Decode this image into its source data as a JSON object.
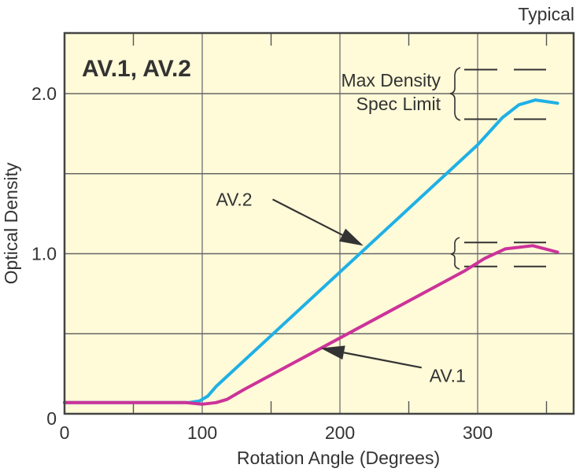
{
  "chart_data": {
    "type": "line",
    "title": "AV.1, AV.2",
    "corner_label": "Typical",
    "xlabel": "Rotation Angle (Degrees)",
    "ylabel": "Optical Density",
    "xlim": [
      0,
      370
    ],
    "ylim": [
      0,
      2.37
    ],
    "x_ticks": [
      {
        "value": 0,
        "label": "0"
      },
      {
        "value": 100,
        "label": "100"
      },
      {
        "value": 200,
        "label": "200"
      },
      {
        "value": 300,
        "label": "300"
      }
    ],
    "y_ticks": [
      {
        "value": 0,
        "label": "0"
      },
      {
        "value": 1.0,
        "label": "1.0"
      },
      {
        "value": 2.0,
        "label": "2.0"
      }
    ],
    "x_gridlines": [
      100,
      200,
      300
    ],
    "y_gridlines": [
      0.5,
      1.0,
      1.5,
      2.0
    ],
    "x_minor_ticks": [
      50,
      150,
      250,
      350
    ],
    "grid": true,
    "background_color": "#fffad8",
    "series": [
      {
        "name": "AV.2",
        "color": "#1fb0e6",
        "points": [
          [
            0,
            0.07
          ],
          [
            90,
            0.07
          ],
          [
            98,
            0.08
          ],
          [
            104,
            0.11
          ],
          [
            110,
            0.17
          ],
          [
            300,
            1.68
          ],
          [
            318,
            1.85
          ],
          [
            330,
            1.93
          ],
          [
            342,
            1.96
          ],
          [
            358,
            1.94
          ]
        ]
      },
      {
        "name": "AV.1",
        "color": "#cc3399",
        "points": [
          [
            0,
            0.07
          ],
          [
            88,
            0.07
          ],
          [
            100,
            0.06
          ],
          [
            110,
            0.07
          ],
          [
            118,
            0.09
          ],
          [
            130,
            0.15
          ],
          [
            290,
            0.89
          ],
          [
            305,
            0.97
          ],
          [
            320,
            1.03
          ],
          [
            340,
            1.05
          ],
          [
            358,
            1.01
          ]
        ]
      }
    ],
    "spec_limits": {
      "label_line1": "Max Density",
      "label_line2": "Spec Limit",
      "AV.2": [
        1.84,
        2.15
      ],
      "AV.1": [
        0.92,
        1.07
      ]
    },
    "annotations": [
      {
        "text": "AV.2",
        "label_at": [
          110,
          1.3
        ],
        "arrow_to": [
          217,
          1.05
        ]
      },
      {
        "text": "AV.1",
        "label_at": [
          265,
          0.2
        ],
        "arrow_to": [
          186,
          0.41
        ]
      }
    ]
  }
}
